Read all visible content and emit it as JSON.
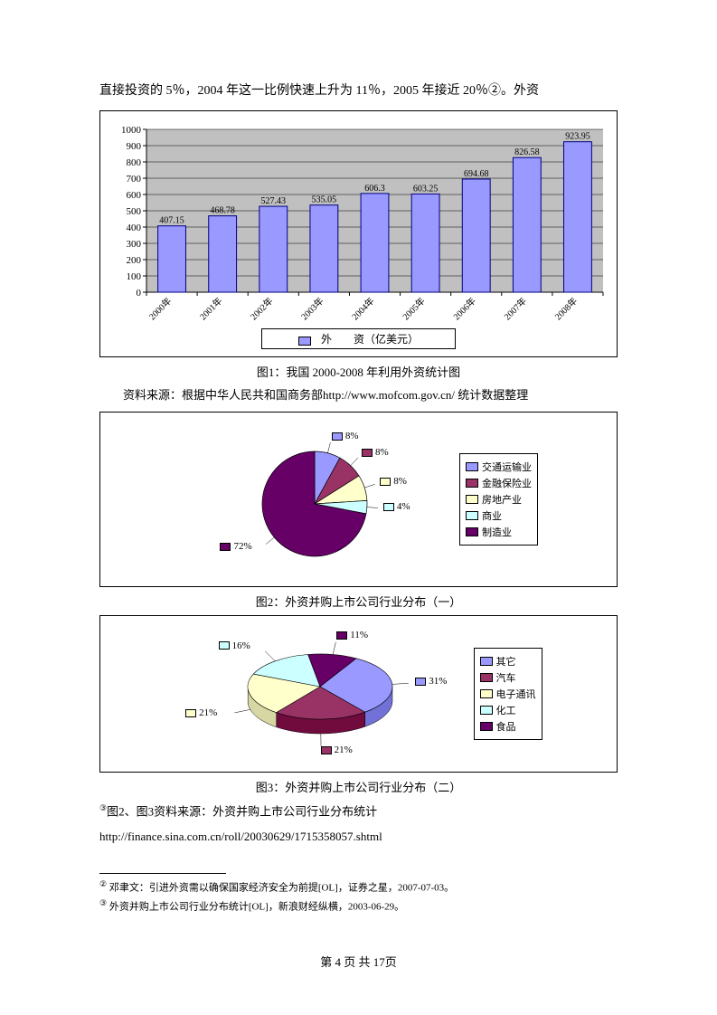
{
  "intro": "直接投资的 5％，2004 年这一比例快速上升为 11％，2005 年接近 20％②。外资",
  "bar_chart": {
    "type": "bar",
    "categories": [
      "2000年",
      "2001年",
      "2002年",
      "2003年",
      "2004年",
      "2005年",
      "2006年",
      "2007年",
      "2008年"
    ],
    "values": [
      407.15,
      468.78,
      527.43,
      535.05,
      606.3,
      603.25,
      694.68,
      826.58,
      923.95
    ],
    "labels": [
      "407.15",
      "468.78",
      "527.43",
      "535.05",
      "606.3",
      "603.25",
      "694.68",
      "826.58",
      "923.95"
    ],
    "ylim": [
      0,
      1000
    ],
    "ytick_step": 100,
    "bar_color": "#9999ff",
    "bar_border": "#000080",
    "plot_bg": "#c0c0c0",
    "grid_color": "#000000",
    "text_color": "#000000",
    "legend_label": "外　　资（亿美元）"
  },
  "caption1": "图1：我国 2000-2008 年利用外资统计图",
  "source1": "资料来源：根据中华人民共和国商务部http://www.mofcom.gov.cn/ 统计数据整理",
  "pie1": {
    "type": "pie",
    "slices": [
      {
        "label": "交通运输业",
        "value": 8,
        "color": "#9999ff"
      },
      {
        "label": "金融保险业",
        "value": 8,
        "color": "#993366"
      },
      {
        "label": "房地产业",
        "value": 8,
        "color": "#ffffcc"
      },
      {
        "label": "商业",
        "value": 4,
        "color": "#ccffff"
      },
      {
        "label": "制造业",
        "value": 72,
        "color": "#660066"
      }
    ],
    "label_fontsize": 11
  },
  "caption2": "图2：外资并购上市公司行业分布（一）",
  "pie2": {
    "type": "pie-3d",
    "slices": [
      {
        "label": "其它",
        "value": 31,
        "color": "#9999ff"
      },
      {
        "label": "汽车",
        "value": 21,
        "color": "#993366"
      },
      {
        "label": "电子通讯",
        "value": 21,
        "color": "#ffffcc"
      },
      {
        "label": "化工",
        "value": 16,
        "color": "#ccffff"
      },
      {
        "label": "食品",
        "value": 11,
        "color": "#660066"
      }
    ],
    "label_fontsize": 11
  },
  "caption3": "图3：外资并购上市公司行业分布（二）",
  "source2_prefix": "③",
  "source2": "图2、图3资料来源：外资并购上市公司行业分布统计",
  "source2_url": "http://finance.sina.com.cn/roll/20030629/1715358057.shtml",
  "footnote1_prefix": "②",
  "footnote1": " 邓聿文：引进外资需以确保国家经济安全为前提[OL]，证券之星，2007-07-03。",
  "footnote2_prefix": "③",
  "footnote2": " 外资并购上市公司行业分布统计[OL]，新浪财经纵横，2003-06-29。",
  "pagenum": "第 4 页 共 17页"
}
